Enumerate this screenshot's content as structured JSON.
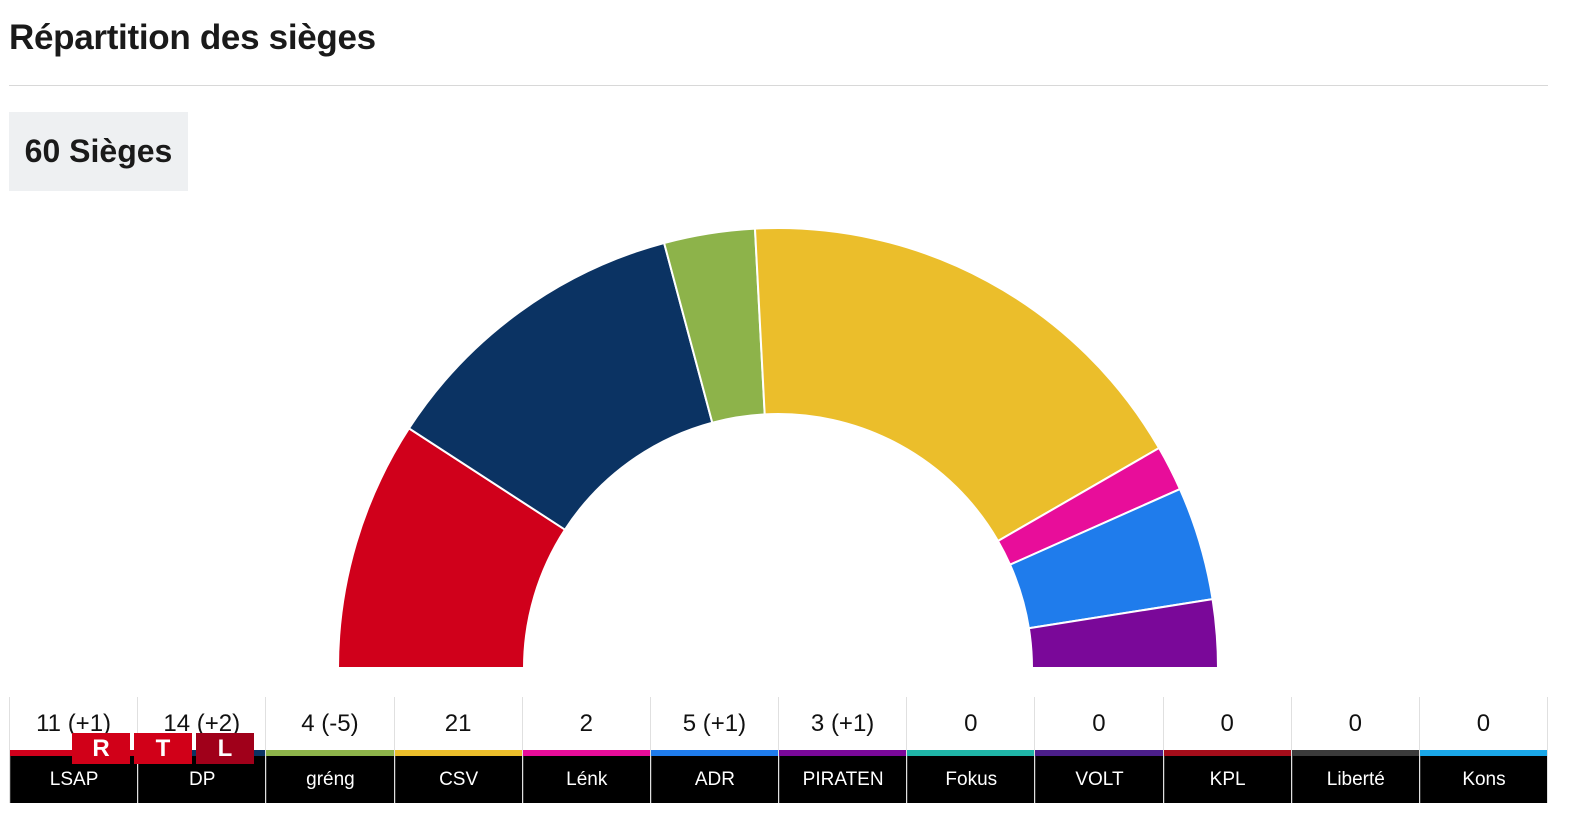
{
  "title": "Répartition des sièges",
  "seat_badge": "60 Sièges",
  "logo_text": [
    "R",
    "T",
    "L"
  ],
  "chart_data": {
    "type": "pie",
    "shape": "semicircle",
    "total": 60,
    "slices": [
      {
        "party": "LSAP",
        "seats": 11,
        "change": "+1",
        "label": "11 (+1)",
        "color": "#d0001b"
      },
      {
        "party": "DP",
        "seats": 14,
        "change": "+2",
        "label": "14 (+2)",
        "color": "#0b3363"
      },
      {
        "party": "gréng",
        "seats": 4,
        "change": "-5",
        "label": "4 (-5)",
        "color": "#8db34a"
      },
      {
        "party": "CSV",
        "seats": 21,
        "change": "",
        "label": "21",
        "color": "#ebbe2b"
      },
      {
        "party": "Lénk",
        "seats": 2,
        "change": "",
        "label": "2",
        "color": "#e80d9a"
      },
      {
        "party": "ADR",
        "seats": 5,
        "change": "+1",
        "label": "5 (+1)",
        "color": "#1f7cec"
      },
      {
        "party": "PIRATEN",
        "seats": 3,
        "change": "+1",
        "label": "3 (+1)",
        "color": "#7a0899"
      },
      {
        "party": "Fokus",
        "seats": 0,
        "change": "",
        "label": "0",
        "color": "#1fb5a8"
      },
      {
        "party": "VOLT",
        "seats": 0,
        "change": "",
        "label": "0",
        "color": "#4b1e8a"
      },
      {
        "party": "KPL",
        "seats": 0,
        "change": "",
        "label": "0",
        "color": "#a50d1a"
      },
      {
        "party": "Liberté",
        "seats": 0,
        "change": "",
        "label": "0",
        "color": "#3b3b3b"
      },
      {
        "party": "Kons",
        "seats": 0,
        "change": "",
        "label": "0",
        "color": "#1aa7e8"
      }
    ]
  }
}
